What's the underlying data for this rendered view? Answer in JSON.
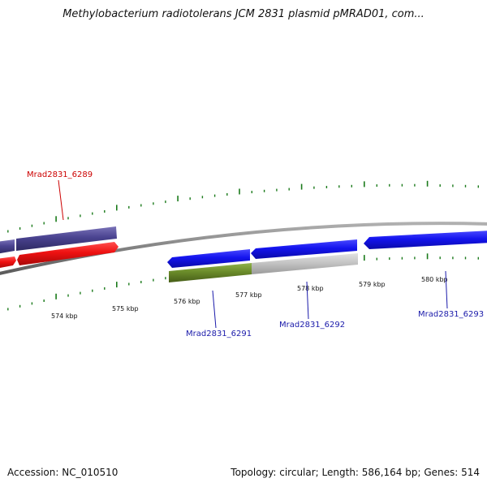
{
  "title": "Methylobacterium radiotolerans JCM 2831 plasmid pMRAD01, com...",
  "footer": {
    "accession": "Accession: NC_010510",
    "summary": "Topology: circular; Length: 586,164 bp; Genes: 514"
  },
  "colors": {
    "backbone": "#888888",
    "tick": "#1a7a1a",
    "forward_cds": "#1010ee",
    "reverse_cds": "#ee1111",
    "purple": "#4a4390",
    "olive": "#6b8c2a",
    "grey": "#c4c4c4",
    "label_blue": "#1a1aaa",
    "label_red": "#cc0000"
  },
  "scale": {
    "tick_labels": [
      "574 kbp",
      "575 kbp",
      "576 kbp",
      "577 kbp",
      "578 kbp",
      "579 kbp",
      "580 kbp"
    ]
  },
  "genes": [
    {
      "label": "Mrad2831_6289",
      "color_key": "label_red"
    },
    {
      "label": "Mrad2831_6291",
      "color_key": "label_blue"
    },
    {
      "label": "Mrad2831_6292",
      "color_key": "label_blue"
    },
    {
      "label": "Mrad2831_6293",
      "color_key": "label_blue"
    }
  ]
}
